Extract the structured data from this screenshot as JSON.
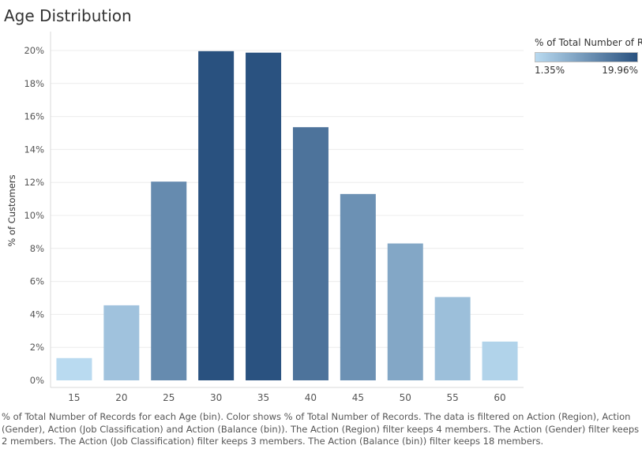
{
  "chart_data": {
    "type": "bar",
    "title": "Age Distribution",
    "xlabel": "",
    "ylabel": "% of Customers",
    "categories": [
      "15",
      "20",
      "25",
      "30",
      "35",
      "40",
      "45",
      "50",
      "55",
      "60"
    ],
    "values": [
      1.35,
      4.55,
      12.05,
      19.96,
      19.87,
      15.35,
      11.3,
      8.3,
      5.05,
      2.35
    ],
    "ylim": [
      0,
      20
    ],
    "yticks": [
      0,
      2,
      4,
      6,
      8,
      10,
      12,
      14,
      16,
      18,
      20
    ],
    "ytick_labels": [
      "0%",
      "2%",
      "4%",
      "6%",
      "8%",
      "10%",
      "12%",
      "14%",
      "16%",
      "18%",
      "20%"
    ],
    "grid": true,
    "legend": {
      "title": "% of Total Number of R..",
      "min_label": "1.35%",
      "max_label": "19.96%",
      "min_value": 1.35,
      "max_value": 19.96,
      "color_min": "#b9daf0",
      "color_max": "#29517f",
      "placement": "top-right"
    }
  },
  "caption": "% of Total Number of Records for each Age (bin).  Color shows % of Total Number of Records. The data is filtered on Action (Region), Action (Gender), Action (Job Classification) and Action (Balance (bin)). The Action (Region) filter keeps 4 members. The Action (Gender) filter keeps 2 members. The Action (Job Classification) filter keeps 3 members. The Action (Balance (bin)) filter keeps 18 members."
}
